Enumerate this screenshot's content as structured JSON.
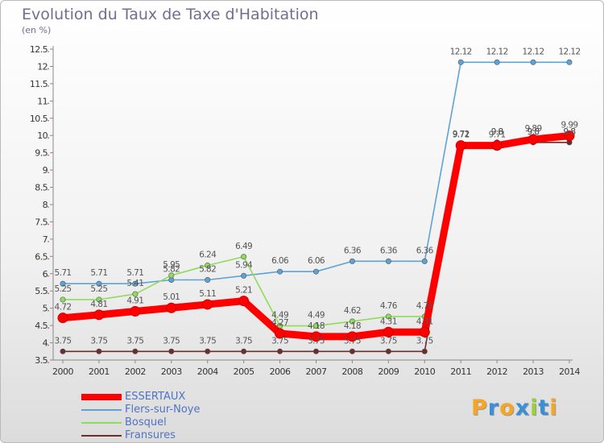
{
  "title": "Evolution du Taux de Taxe d'Habitation",
  "unit": "(en %)",
  "chart_data": {
    "type": "line",
    "title": "Evolution du Taux de Taxe d'Habitation",
    "ylabel": "(en %)",
    "xlabel": "",
    "ylim": [
      3.5,
      12.5
    ],
    "ystep": 0.5,
    "grid": false,
    "legend_position": "bottom-left",
    "x": [
      "2000",
      "2001",
      "2002",
      "2003",
      "2004",
      "2005",
      "2006",
      "2007",
      "2008",
      "2009",
      "2010",
      "2011",
      "2012",
      "2013",
      "2014"
    ],
    "series": [
      {
        "name": "ESSERTAUX",
        "color": "#ff0000",
        "emphasis": true,
        "values": [
          4.72,
          4.81,
          4.91,
          5.01,
          5.11,
          5.21,
          4.27,
          4.18,
          4.18,
          4.31,
          4.31,
          9.71,
          9.71,
          9.89,
          9.99
        ],
        "labels": [
          "4.72",
          "4.81",
          "4.91",
          "5.01",
          "5.11",
          "5.21",
          "4.27",
          "4.18",
          "4.18",
          "4.31",
          "4.31",
          "9.71",
          "9.71",
          "9.89",
          "9.99"
        ]
      },
      {
        "name": "Flers-sur-Noye",
        "color": "#5ea3d8",
        "values": [
          5.71,
          5.71,
          5.71,
          5.82,
          5.82,
          5.94,
          6.06,
          6.06,
          6.36,
          6.36,
          6.36,
          12.12,
          12.12,
          12.12,
          12.12
        ],
        "labels": [
          "5.71",
          "5.71",
          "5.71",
          "5.82",
          "5.82",
          "5.94",
          "6.06",
          "6.06",
          "6.36",
          "6.36",
          "6.36",
          "12.12",
          "12.12",
          "12.12",
          "12.12"
        ]
      },
      {
        "name": "Bosquel",
        "color": "#8fdb5a",
        "values": [
          5.25,
          5.25,
          5.41,
          5.95,
          6.24,
          6.49,
          4.49,
          4.49,
          4.62,
          4.76,
          4.76,
          9.72,
          9.8,
          9.8,
          9.8
        ],
        "labels": [
          "5.25",
          "5.25",
          "5.41",
          "5.95",
          "6.24",
          "6.49",
          "4.49",
          "4.49",
          "4.62",
          "4.76",
          "4.76",
          "9.72",
          "9.8",
          "9.8",
          "9.8"
        ]
      },
      {
        "name": "Fransures",
        "color": "#6e2c2c",
        "values": [
          3.75,
          3.75,
          3.75,
          3.75,
          3.75,
          3.75,
          3.75,
          3.75,
          3.75,
          3.75,
          3.75,
          9.72,
          9.8,
          9.8,
          9.8
        ],
        "labels": [
          "3.75",
          "3.75",
          "3.75",
          "3.75",
          "3.75",
          "3.75",
          "3.75",
          "3.75",
          "3.75",
          "3.75",
          "3.75",
          "9.72",
          "9.8",
          "9.8",
          "9.8"
        ]
      }
    ]
  },
  "logo": {
    "letters": [
      "P",
      "r",
      "o",
      "x",
      "i",
      "t",
      "i"
    ],
    "colors": [
      "#f6a623",
      "#3a8fd8",
      "#f6a623",
      "#3a8fd8",
      "#9ad13a",
      "#3a8fd8",
      "#f6a623"
    ]
  }
}
